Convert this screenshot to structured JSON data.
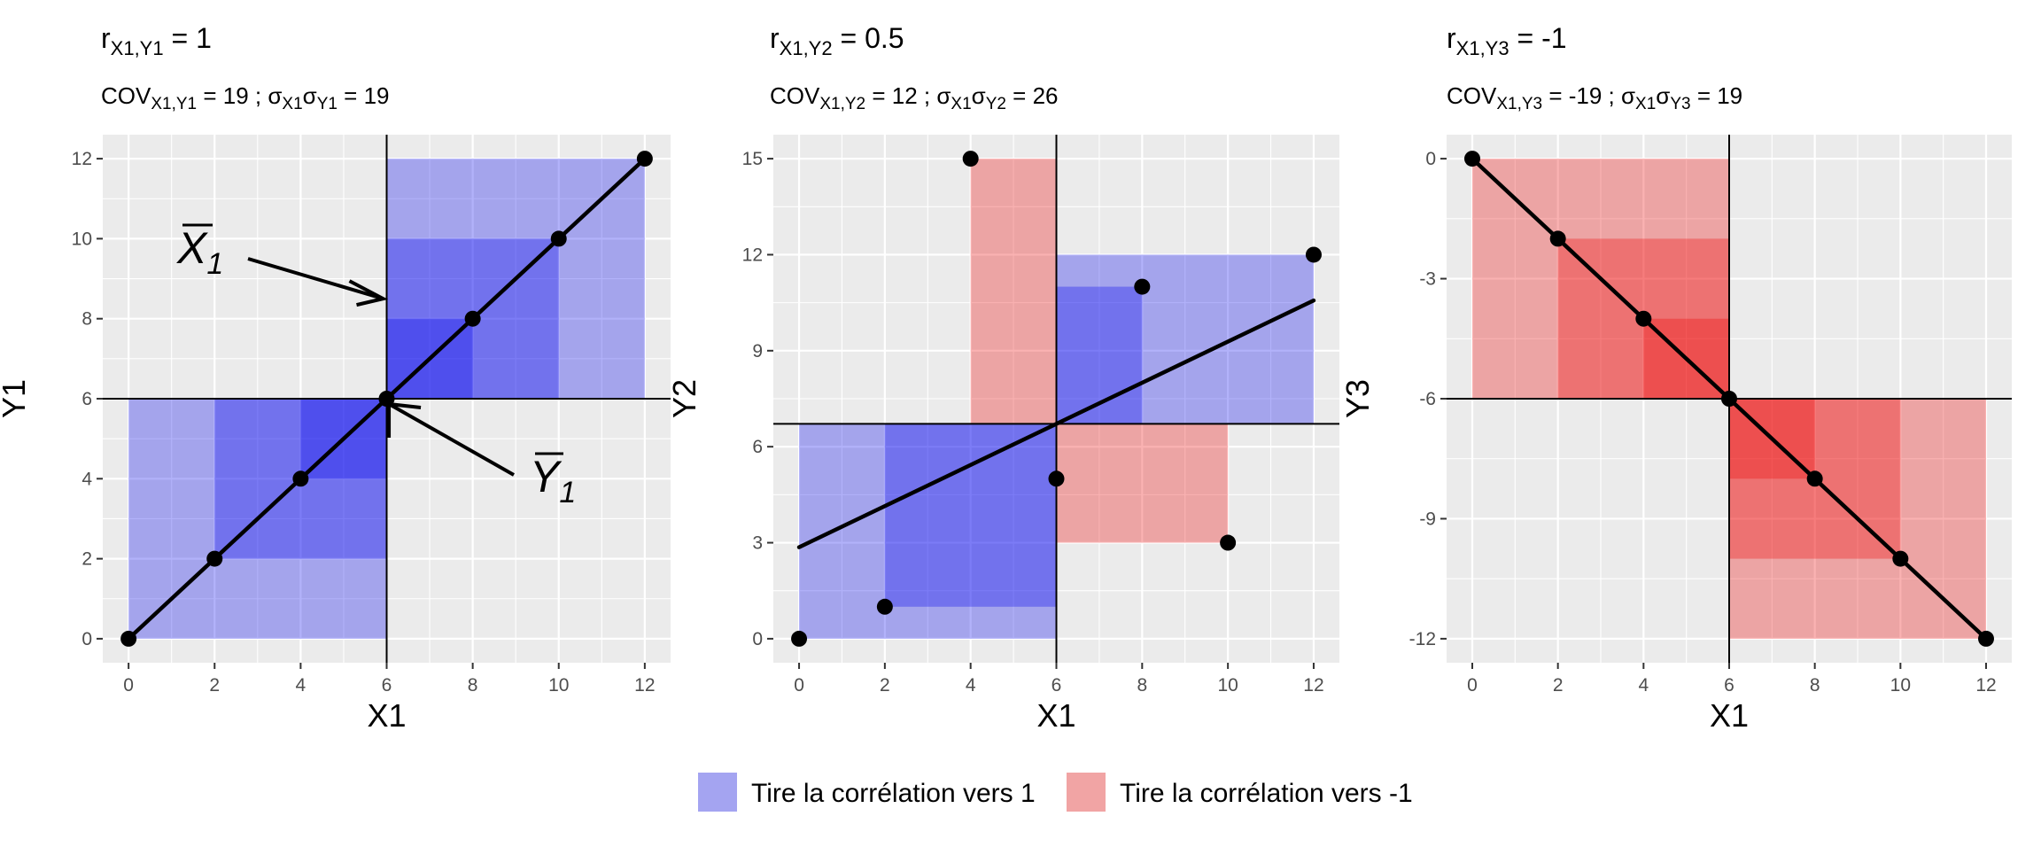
{
  "colors": {
    "panel_bg": "#ebebeb",
    "grid": "#ffffff",
    "positive": "#0000ee",
    "negative": "#ee0000",
    "positive_legend": "#a4a4f1",
    "negative_legend": "#f1a4a4",
    "ink": "#000000",
    "tick_text": "#4d4d4d"
  },
  "legend": {
    "position": "bottom",
    "items": [
      {
        "label": "Tire la corrélation vers 1",
        "color": "#a4a4f1"
      },
      {
        "label": "Tire la corrélation vers -1",
        "color": "#f1a4a4"
      }
    ]
  },
  "chart_data": [
    {
      "type": "scatter",
      "title": {
        "r_sym": "r",
        "r_sub": "X1,Y1",
        "r_val": " = 1"
      },
      "subtitle": {
        "cov": "COV",
        "cov_sub": "X1,Y1",
        "cov_val": " = 19 ; ",
        "sd": "σ",
        "sd_sub1": "X1",
        "sd_sub2": "Y1",
        "sd_val": " = 19"
      },
      "xlabel": "X1",
      "ylabel": "Y1",
      "xlim": [
        -0.6,
        12.6
      ],
      "ylim": [
        -0.6,
        12.6
      ],
      "xticks": [
        0,
        2,
        4,
        6,
        8,
        10,
        12
      ],
      "yticks": [
        0,
        2,
        4,
        6,
        8,
        10,
        12
      ],
      "ytick_labels": [
        "0",
        "2",
        "4",
        "6",
        "8",
        "10",
        "12"
      ],
      "x": [
        0,
        2,
        4,
        6,
        8,
        10,
        12
      ],
      "y": [
        0,
        2,
        4,
        6,
        8,
        10,
        12
      ],
      "mean_x": 6,
      "mean_y": 6,
      "fit": {
        "x": [
          0,
          12
        ],
        "y": [
          0,
          12
        ]
      },
      "annotations": [
        {
          "text": "X",
          "sub": "1",
          "target": [
            6,
            8.5
          ]
        },
        {
          "text": "Y",
          "sub": "1",
          "target": [
            7,
            6
          ]
        }
      ]
    },
    {
      "type": "scatter",
      "title": {
        "r_sym": "r",
        "r_sub": "X1,Y2",
        "r_val": " = 0.5"
      },
      "subtitle": {
        "cov": "COV",
        "cov_sub": "X1,Y2",
        "cov_val": " = 12 ; ",
        "sd": "σ",
        "sd_sub1": "X1",
        "sd_sub2": "Y2",
        "sd_val": " = 26"
      },
      "xlabel": "X1",
      "ylabel": "Y2",
      "xlim": [
        -0.6,
        12.6
      ],
      "ylim": [
        -0.75,
        15.75
      ],
      "xticks": [
        0,
        2,
        4,
        6,
        8,
        10,
        12
      ],
      "yticks": [
        0,
        3,
        6,
        9,
        12,
        15
      ],
      "ytick_labels": [
        "0",
        "3",
        "6",
        "9",
        "12",
        "15"
      ],
      "x": [
        0,
        2,
        4,
        6,
        8,
        10,
        12
      ],
      "y": [
        0,
        1,
        15,
        5,
        11,
        3,
        12
      ],
      "mean_x": 6,
      "mean_y": 6.714,
      "fit": {
        "x": [
          0,
          12
        ],
        "y": [
          2.86,
          10.57
        ]
      }
    },
    {
      "type": "scatter",
      "title": {
        "r_sym": "r",
        "r_sub": "X1,Y3",
        "r_val": " = -1"
      },
      "subtitle": {
        "cov": "COV",
        "cov_sub": "X1,Y3",
        "cov_val": " = -19 ; ",
        "sd": "σ",
        "sd_sub1": "X1",
        "sd_sub2": "Y3",
        "sd_val": " = 19"
      },
      "xlabel": "X1",
      "ylabel": "Y3",
      "xlim": [
        -0.6,
        12.6
      ],
      "ylim": [
        -12.6,
        0.6
      ],
      "xticks": [
        0,
        2,
        4,
        6,
        8,
        10,
        12
      ],
      "yticks": [
        0,
        -3,
        -6,
        -9,
        -12
      ],
      "ytick_labels": [
        "0",
        "-3",
        "-6",
        "-9",
        "-12"
      ],
      "x": [
        0,
        2,
        4,
        6,
        8,
        10,
        12
      ],
      "y": [
        0,
        -2,
        -4,
        -6,
        -8,
        -10,
        -12
      ],
      "mean_x": 6,
      "mean_y": -6,
      "fit": {
        "x": [
          0,
          12
        ],
        "y": [
          0,
          -12
        ]
      }
    }
  ]
}
